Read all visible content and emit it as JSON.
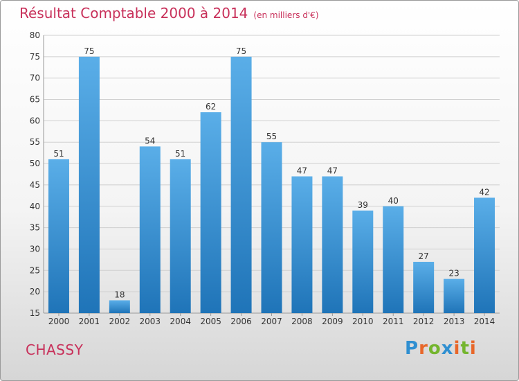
{
  "title": {
    "main": "Résultat Comptable 2000 à 2014",
    "unit": "(en milliers d'€)"
  },
  "place": "CHASSY",
  "logo": {
    "text": "Proxiti",
    "letters": [
      {
        "ch": "P",
        "color": "#2f8fd1"
      },
      {
        "ch": "r",
        "color": "#e8672a"
      },
      {
        "ch": "o",
        "color": "#74b52e"
      },
      {
        "ch": "x",
        "color": "#2f8fd1"
      },
      {
        "ch": "i",
        "color": "#e8672a"
      },
      {
        "ch": "t",
        "color": "#74b52e"
      },
      {
        "ch": "i",
        "color": "#e8672a"
      }
    ]
  },
  "colors": {
    "bar_top": "#5aaee8",
    "bar_bottom": "#1f74b8",
    "title": "#c8305a"
  },
  "chart_data": {
    "type": "bar",
    "title": "Résultat Comptable 2000 à 2014",
    "subtitle": "(en milliers d'€)",
    "xlabel": "",
    "ylabel": "",
    "categories": [
      "2000",
      "2001",
      "2002",
      "2003",
      "2004",
      "2005",
      "2006",
      "2007",
      "2008",
      "2009",
      "2010",
      "2011",
      "2012",
      "2013",
      "2014"
    ],
    "values": [
      51,
      75,
      18,
      54,
      51,
      62,
      75,
      55,
      47,
      47,
      39,
      40,
      27,
      23,
      42
    ],
    "ylim": [
      15,
      80
    ],
    "yticks": [
      15,
      20,
      25,
      30,
      35,
      40,
      45,
      50,
      55,
      60,
      65,
      70,
      75,
      80
    ],
    "grid": true,
    "data_labels": true
  }
}
